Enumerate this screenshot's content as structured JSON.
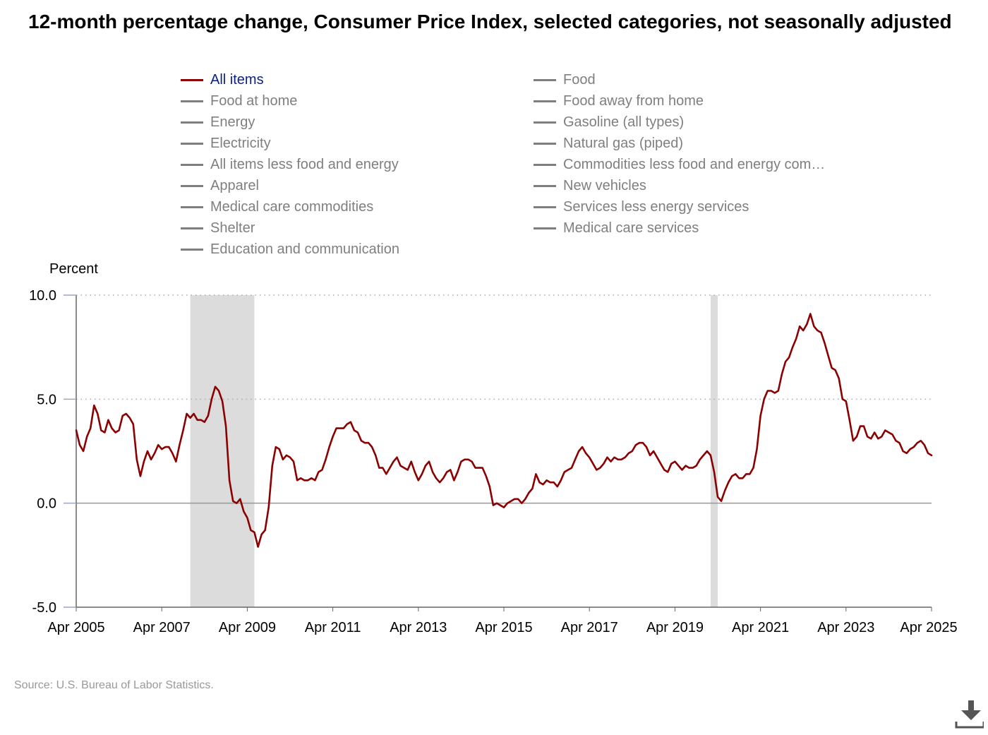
{
  "title": "12-month percentage change, Consumer Price Index, selected categories, not seasonally adjusted",
  "legend": {
    "items": [
      {
        "label": "All items",
        "active": true
      },
      {
        "label": "Food",
        "active": false
      },
      {
        "label": "Food at home",
        "active": false
      },
      {
        "label": "Food away from home",
        "active": false
      },
      {
        "label": "Energy",
        "active": false
      },
      {
        "label": "Gasoline (all types)",
        "active": false
      },
      {
        "label": "Electricity",
        "active": false
      },
      {
        "label": "Natural gas (piped)",
        "active": false
      },
      {
        "label": "All items less food and energy",
        "active": false
      },
      {
        "label": "Commodities less food and energy com…",
        "active": false
      },
      {
        "label": "Apparel",
        "active": false
      },
      {
        "label": "New vehicles",
        "active": false
      },
      {
        "label": "Medical care commodities",
        "active": false
      },
      {
        "label": "Services less energy services",
        "active": false
      },
      {
        "label": "Shelter",
        "active": false
      },
      {
        "label": "Medical care services",
        "active": false
      },
      {
        "label": "Education and communication",
        "active": false
      }
    ]
  },
  "source": "Source: U.S. Bureau of Labor Statistics.",
  "icons": {
    "download": "download-icon"
  },
  "colors": {
    "series": "#8b0000",
    "recession": "#dcdcdc",
    "legend_active_text": "#0b1f8a",
    "legend_inactive": "#7f7f7f"
  },
  "chart_data": {
    "type": "line",
    "ylabel": "Percent",
    "ylim": [
      -5.0,
      10.0
    ],
    "yticks": [
      "10.0",
      "5.0",
      "0.0",
      "-5.0"
    ],
    "xlim": [
      "2005-04",
      "2025-04"
    ],
    "xticks": [
      "Apr 2005",
      "Apr 2007",
      "Apr 2009",
      "Apr 2011",
      "Apr 2013",
      "Apr 2015",
      "Apr 2017",
      "Apr 2019",
      "Apr 2021",
      "Apr 2023",
      "Apr 2025"
    ],
    "grid": "dotted horizontal at 5.0 and 10.0",
    "recessions": [
      {
        "start": "2007-12",
        "end": "2009-06"
      },
      {
        "start": "2020-02",
        "end": "2020-04"
      }
    ],
    "series": [
      {
        "name": "All items",
        "x": [
          "2005-04",
          "2005-05",
          "2005-06",
          "2005-07",
          "2005-08",
          "2005-09",
          "2005-10",
          "2005-11",
          "2005-12",
          "2006-01",
          "2006-02",
          "2006-03",
          "2006-04",
          "2006-05",
          "2006-06",
          "2006-07",
          "2006-08",
          "2006-09",
          "2006-10",
          "2006-11",
          "2006-12",
          "2007-01",
          "2007-02",
          "2007-03",
          "2007-04",
          "2007-05",
          "2007-06",
          "2007-07",
          "2007-08",
          "2007-09",
          "2007-10",
          "2007-11",
          "2007-12",
          "2008-01",
          "2008-02",
          "2008-03",
          "2008-04",
          "2008-05",
          "2008-06",
          "2008-07",
          "2008-08",
          "2008-09",
          "2008-10",
          "2008-11",
          "2008-12",
          "2009-01",
          "2009-02",
          "2009-03",
          "2009-04",
          "2009-05",
          "2009-06",
          "2009-07",
          "2009-08",
          "2009-09",
          "2009-10",
          "2009-11",
          "2009-12",
          "2010-01",
          "2010-02",
          "2010-03",
          "2010-04",
          "2010-05",
          "2010-06",
          "2010-07",
          "2010-08",
          "2010-09",
          "2010-10",
          "2010-11",
          "2010-12",
          "2011-01",
          "2011-02",
          "2011-03",
          "2011-04",
          "2011-05",
          "2011-06",
          "2011-07",
          "2011-08",
          "2011-09",
          "2011-10",
          "2011-11",
          "2011-12",
          "2012-01",
          "2012-02",
          "2012-03",
          "2012-04",
          "2012-05",
          "2012-06",
          "2012-07",
          "2012-08",
          "2012-09",
          "2012-10",
          "2012-11",
          "2012-12",
          "2013-01",
          "2013-02",
          "2013-03",
          "2013-04",
          "2013-05",
          "2013-06",
          "2013-07",
          "2013-08",
          "2013-09",
          "2013-10",
          "2013-11",
          "2013-12",
          "2014-01",
          "2014-02",
          "2014-03",
          "2014-04",
          "2014-05",
          "2014-06",
          "2014-07",
          "2014-08",
          "2014-09",
          "2014-10",
          "2014-11",
          "2014-12",
          "2015-01",
          "2015-02",
          "2015-03",
          "2015-04",
          "2015-05",
          "2015-06",
          "2015-07",
          "2015-08",
          "2015-09",
          "2015-10",
          "2015-11",
          "2015-12",
          "2016-01",
          "2016-02",
          "2016-03",
          "2016-04",
          "2016-05",
          "2016-06",
          "2016-07",
          "2016-08",
          "2016-09",
          "2016-10",
          "2016-11",
          "2016-12",
          "2017-01",
          "2017-02",
          "2017-03",
          "2017-04",
          "2017-05",
          "2017-06",
          "2017-07",
          "2017-08",
          "2017-09",
          "2017-10",
          "2017-11",
          "2017-12",
          "2018-01",
          "2018-02",
          "2018-03",
          "2018-04",
          "2018-05",
          "2018-06",
          "2018-07",
          "2018-08",
          "2018-09",
          "2018-10",
          "2018-11",
          "2018-12",
          "2019-01",
          "2019-02",
          "2019-03",
          "2019-04",
          "2019-05",
          "2019-06",
          "2019-07",
          "2019-08",
          "2019-09",
          "2019-10",
          "2019-11",
          "2019-12",
          "2020-01",
          "2020-02",
          "2020-03",
          "2020-04",
          "2020-05",
          "2020-06",
          "2020-07",
          "2020-08",
          "2020-09",
          "2020-10",
          "2020-11",
          "2020-12",
          "2021-01",
          "2021-02",
          "2021-03",
          "2021-04",
          "2021-05",
          "2021-06",
          "2021-07",
          "2021-08",
          "2021-09",
          "2021-10",
          "2021-11",
          "2021-12",
          "2022-01",
          "2022-02",
          "2022-03",
          "2022-04",
          "2022-05",
          "2022-06",
          "2022-07",
          "2022-08",
          "2022-09",
          "2022-10",
          "2022-11",
          "2022-12",
          "2023-01",
          "2023-02",
          "2023-03",
          "2023-04",
          "2023-05",
          "2023-06",
          "2023-07",
          "2023-08",
          "2023-09",
          "2023-10",
          "2023-11",
          "2023-12",
          "2024-01",
          "2024-02",
          "2024-03",
          "2024-04",
          "2024-05",
          "2024-06",
          "2024-07",
          "2024-08",
          "2024-09",
          "2024-10",
          "2024-11",
          "2024-12",
          "2025-01",
          "2025-02",
          "2025-03",
          "2025-04"
        ],
        "values": [
          3.5,
          2.8,
          2.5,
          3.2,
          3.6,
          4.7,
          4.3,
          3.5,
          3.4,
          4.0,
          3.6,
          3.4,
          3.5,
          4.2,
          4.3,
          4.1,
          3.8,
          2.1,
          1.3,
          2.0,
          2.5,
          2.1,
          2.4,
          2.8,
          2.6,
          2.7,
          2.7,
          2.4,
          2.0,
          2.8,
          3.5,
          4.3,
          4.1,
          4.3,
          4.0,
          4.0,
          3.9,
          4.2,
          5.0,
          5.6,
          5.4,
          4.9,
          3.7,
          1.1,
          0.1,
          0.0,
          0.2,
          -0.4,
          -0.7,
          -1.3,
          -1.4,
          -2.1,
          -1.5,
          -1.3,
          -0.2,
          1.8,
          2.7,
          2.6,
          2.1,
          2.3,
          2.2,
          2.0,
          1.1,
          1.2,
          1.1,
          1.1,
          1.2,
          1.1,
          1.5,
          1.6,
          2.1,
          2.7,
          3.2,
          3.6,
          3.6,
          3.6,
          3.8,
          3.9,
          3.5,
          3.4,
          3.0,
          2.9,
          2.9,
          2.7,
          2.3,
          1.7,
          1.7,
          1.4,
          1.7,
          2.0,
          2.2,
          1.8,
          1.7,
          1.6,
          2.0,
          1.5,
          1.1,
          1.4,
          1.8,
          2.0,
          1.5,
          1.2,
          1.0,
          1.2,
          1.5,
          1.6,
          1.1,
          1.5,
          2.0,
          2.1,
          2.1,
          2.0,
          1.7,
          1.7,
          1.7,
          1.3,
          0.8,
          -0.1,
          0.0,
          -0.1,
          -0.2,
          0.0,
          0.1,
          0.2,
          0.2,
          0.0,
          0.2,
          0.5,
          0.7,
          1.4,
          1.0,
          0.9,
          1.1,
          1.0,
          1.0,
          0.8,
          1.1,
          1.5,
          1.6,
          1.7,
          2.1,
          2.5,
          2.7,
          2.4,
          2.2,
          1.9,
          1.6,
          1.7,
          1.9,
          2.2,
          2.0,
          2.2,
          2.1,
          2.1,
          2.2,
          2.4,
          2.5,
          2.8,
          2.9,
          2.9,
          2.7,
          2.3,
          2.5,
          2.2,
          1.9,
          1.6,
          1.5,
          1.9,
          2.0,
          1.8,
          1.6,
          1.8,
          1.7,
          1.7,
          1.8,
          2.1,
          2.3,
          2.5,
          2.3,
          1.5,
          0.3,
          0.1,
          0.6,
          1.0,
          1.3,
          1.4,
          1.2,
          1.2,
          1.4,
          1.4,
          1.7,
          2.6,
          4.2,
          5.0,
          5.4,
          5.4,
          5.3,
          5.4,
          6.2,
          6.8,
          7.0,
          7.5,
          7.9,
          8.5,
          8.3,
          8.6,
          9.1,
          8.5,
          8.3,
          8.2,
          7.7,
          7.1,
          6.5,
          6.4,
          6.0,
          5.0,
          4.9,
          4.0,
          3.0,
          3.2,
          3.7,
          3.7,
          3.2,
          3.1,
          3.4,
          3.1,
          3.2,
          3.5,
          3.4,
          3.3,
          3.0,
          2.9,
          2.5,
          2.4,
          2.6,
          2.7,
          2.9,
          3.0,
          2.8,
          2.4,
          2.3
        ]
      }
    ]
  }
}
